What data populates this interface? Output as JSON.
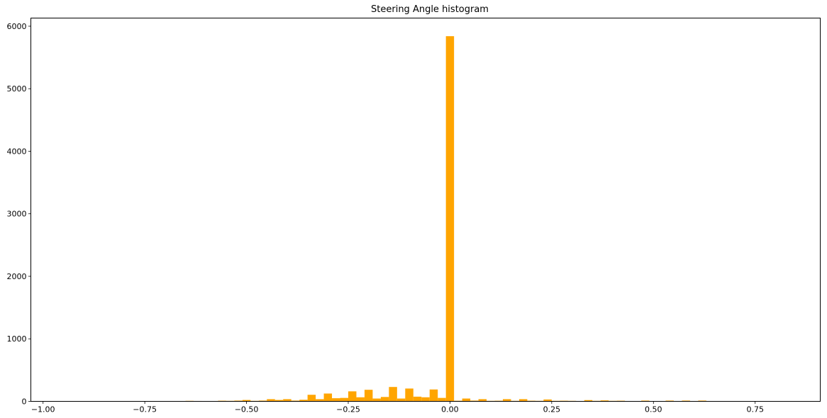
{
  "chart_data": {
    "type": "bar",
    "title": "Steering Angle histogram",
    "xlabel": "",
    "ylabel": "",
    "xlim": [
      -1.03,
      0.91
    ],
    "ylim": [
      0,
      6130
    ],
    "x_ticks": [
      -1.0,
      -0.75,
      -0.5,
      -0.25,
      0.0,
      0.25,
      0.5,
      0.75
    ],
    "x_tick_labels": [
      "−1.00",
      "−0.75",
      "−0.50",
      "−0.25",
      "0.00",
      "0.25",
      "0.50",
      "0.75"
    ],
    "y_ticks": [
      0,
      1000,
      2000,
      3000,
      4000,
      5000,
      6000
    ],
    "y_tick_labels": [
      "0",
      "1000",
      "2000",
      "3000",
      "4000",
      "5000",
      "6000"
    ],
    "grid": false,
    "bin_width": 0.02,
    "bins": [
      {
        "x": -0.64,
        "count": 8
      },
      {
        "x": -0.62,
        "count": 6
      },
      {
        "x": -0.58,
        "count": 5
      },
      {
        "x": -0.56,
        "count": 10
      },
      {
        "x": -0.54,
        "count": 8
      },
      {
        "x": -0.52,
        "count": 12
      },
      {
        "x": -0.5,
        "count": 22
      },
      {
        "x": -0.48,
        "count": 8
      },
      {
        "x": -0.46,
        "count": 12
      },
      {
        "x": -0.44,
        "count": 35
      },
      {
        "x": -0.42,
        "count": 22
      },
      {
        "x": -0.4,
        "count": 35
      },
      {
        "x": -0.38,
        "count": 12
      },
      {
        "x": -0.36,
        "count": 25
      },
      {
        "x": -0.34,
        "count": 105
      },
      {
        "x": -0.32,
        "count": 35
      },
      {
        "x": -0.3,
        "count": 125
      },
      {
        "x": -0.28,
        "count": 50
      },
      {
        "x": -0.26,
        "count": 55
      },
      {
        "x": -0.24,
        "count": 160
      },
      {
        "x": -0.22,
        "count": 65
      },
      {
        "x": -0.2,
        "count": 185
      },
      {
        "x": -0.18,
        "count": 45
      },
      {
        "x": -0.16,
        "count": 70
      },
      {
        "x": -0.14,
        "count": 230
      },
      {
        "x": -0.12,
        "count": 45
      },
      {
        "x": -0.1,
        "count": 205
      },
      {
        "x": -0.08,
        "count": 75
      },
      {
        "x": -0.06,
        "count": 65
      },
      {
        "x": -0.04,
        "count": 190
      },
      {
        "x": -0.02,
        "count": 55
      },
      {
        "x": 0.0,
        "count": 5840
      },
      {
        "x": 0.02,
        "count": 10
      },
      {
        "x": 0.04,
        "count": 45
      },
      {
        "x": 0.06,
        "count": 12
      },
      {
        "x": 0.08,
        "count": 35
      },
      {
        "x": 0.1,
        "count": 8
      },
      {
        "x": 0.12,
        "count": 10
      },
      {
        "x": 0.14,
        "count": 35
      },
      {
        "x": 0.16,
        "count": 8
      },
      {
        "x": 0.18,
        "count": 35
      },
      {
        "x": 0.2,
        "count": 10
      },
      {
        "x": 0.22,
        "count": 8
      },
      {
        "x": 0.24,
        "count": 30
      },
      {
        "x": 0.26,
        "count": 8
      },
      {
        "x": 0.28,
        "count": 10
      },
      {
        "x": 0.3,
        "count": 8
      },
      {
        "x": 0.32,
        "count": 5
      },
      {
        "x": 0.34,
        "count": 20
      },
      {
        "x": 0.36,
        "count": 8
      },
      {
        "x": 0.38,
        "count": 15
      },
      {
        "x": 0.4,
        "count": 8
      },
      {
        "x": 0.42,
        "count": 10
      },
      {
        "x": 0.44,
        "count": 5
      },
      {
        "x": 0.48,
        "count": 12
      },
      {
        "x": 0.54,
        "count": 12
      },
      {
        "x": 0.58,
        "count": 12
      },
      {
        "x": 0.62,
        "count": 12
      }
    ],
    "colors": {
      "bar": "#ffa500",
      "axis": "#000000"
    }
  }
}
